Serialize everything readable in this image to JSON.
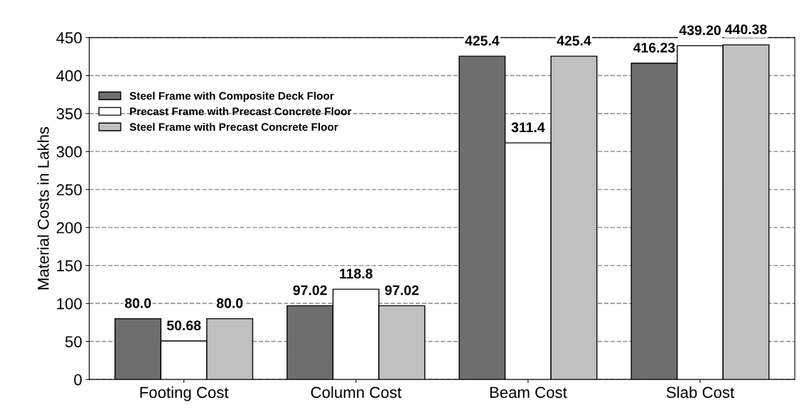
{
  "chart_data": {
    "type": "bar",
    "ylabel": "Material Costs in Lakhs",
    "categories": [
      "Footing Cost",
      "Column Cost",
      "Beam Cost",
      "Slab Cost"
    ],
    "series": [
      {
        "name": "Steel Frame with Composite Deck Floor",
        "color": "#6e6e6e",
        "values": [
          80.0,
          97.02,
          425.4,
          416.23
        ],
        "value_labels": [
          "80.0",
          "97.02",
          "425.4",
          "416.23"
        ]
      },
      {
        "name": "Precast Frame with Precast Concrete Floor",
        "color": "#ffffff",
        "values": [
          50.68,
          118.8,
          311.4,
          439.2
        ],
        "value_labels": [
          "50.68",
          "118.8",
          "311.4",
          "439.20"
        ]
      },
      {
        "name": "Steel Frame with Precast Concrete Floor",
        "color": "#c0c0c0",
        "values": [
          80.0,
          97.02,
          425.4,
          440.38
        ],
        "value_labels": [
          "80.0",
          "97.02",
          "425.4",
          "440.38"
        ]
      }
    ],
    "ylim": [
      0,
      450
    ],
    "yticks": [
      0,
      50,
      100,
      150,
      200,
      250,
      300,
      350,
      400,
      450
    ],
    "grid": "y",
    "legend": "top left"
  }
}
